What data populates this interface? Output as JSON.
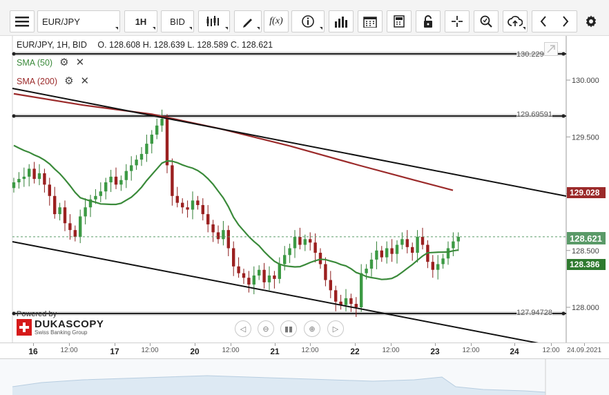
{
  "toolbar": {
    "menu_icon": "hamburger-menu-icon",
    "symbol": "EUR/JPY",
    "timeframe": "1H",
    "price_side": "BID",
    "buttons": [
      "candles-icon",
      "pencil-icon",
      "function-icon",
      "info-icon",
      "bar-chart-icon",
      "calendar-icon",
      "calculator-icon",
      "lock-icon",
      "crosshair-icon",
      "zoom-icon",
      "cloud-upload-icon",
      "arrow-left-icon",
      "arrow-right-icon",
      "gear-icon"
    ],
    "function_label": "f(x)"
  },
  "header": {
    "title": "EUR/JPY, 1H, BID",
    "ohlc": "O. 128.608 H. 128.639 L. 128.589 C. 128.621"
  },
  "indicators": [
    {
      "label": "SMA (50)",
      "color": "#3a8a3a"
    },
    {
      "label": "SMA (200)",
      "color": "#9b2a2a"
    }
  ],
  "levels": {
    "top": "130.229",
    "upper": "129.69591",
    "lower": "127.94728"
  },
  "price_axis": [
    "130.000",
    "129.500",
    "129.000",
    "128.500",
    "128.000"
  ],
  "badges": {
    "sma200": {
      "value": "129.028",
      "color": "#9b2a2a"
    },
    "last": {
      "value": "128.621",
      "color": "#5a9a68"
    },
    "sma50": {
      "value": "128.386",
      "color": "#2f7a2f"
    }
  },
  "time_axis": [
    "16",
    "12:00",
    "17",
    "12:00",
    "20",
    "12:00",
    "21",
    "12:00",
    "22",
    "12:00",
    "23",
    "12:00",
    "24",
    "12:00",
    "24.09.2021"
  ],
  "branding": {
    "powered_by": "Powered by",
    "name": "DUKASCOPY",
    "tagline": "Swiss Banking Group"
  },
  "chart_data": {
    "type": "candlestick",
    "symbol": "EUR/JPY",
    "ylim": [
      127.75,
      130.35
    ],
    "closes": [
      129.1,
      129.13,
      129.15,
      129.22,
      129.13,
      129.18,
      129.08,
      128.98,
      128.82,
      128.88,
      128.74,
      128.68,
      128.62,
      128.8,
      128.88,
      128.95,
      128.98,
      129.02,
      129.1,
      129.15,
      129.08,
      129.12,
      129.2,
      129.25,
      129.3,
      129.35,
      129.44,
      129.52,
      129.6,
      129.66,
      129.25,
      128.98,
      128.92,
      128.88,
      128.86,
      128.94,
      128.9,
      128.82,
      128.73,
      128.66,
      128.6,
      128.68,
      128.52,
      128.36,
      128.3,
      128.26,
      128.2,
      128.28,
      128.33,
      128.22,
      128.28,
      128.25,
      128.38,
      128.46,
      128.52,
      128.62,
      128.55,
      128.6,
      128.57,
      128.48,
      128.38,
      128.24,
      128.15,
      128.05,
      128.02,
      128.08,
      128.03,
      128.0,
      128.3,
      128.34,
      128.42,
      128.5,
      128.44,
      128.52,
      128.47,
      128.55,
      128.6,
      128.53,
      128.48,
      128.62,
      128.55,
      128.4,
      128.33,
      128.38,
      128.43,
      128.52,
      128.58,
      128.62
    ]
  }
}
